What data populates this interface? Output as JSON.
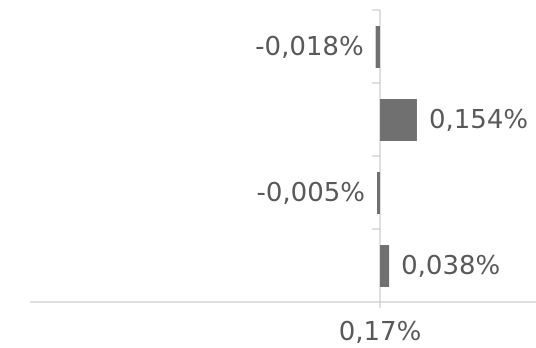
{
  "chart_data": {
    "type": "bar",
    "orientation": "horizontal",
    "categories": [
      "",
      "",
      "",
      ""
    ],
    "values": [
      -0.018,
      0.154,
      -0.005,
      0.038
    ],
    "data_labels": [
      "-0,018%",
      "0,154%",
      "-0,005%",
      "0,038%"
    ],
    "xaxis_tick_label": "0,17%",
    "title": "",
    "xlabel": "",
    "ylabel": "",
    "grid": false,
    "legend": "none",
    "colors": {
      "bar": "#707070",
      "axis": "#bfbfbf",
      "label": "#595959"
    }
  }
}
